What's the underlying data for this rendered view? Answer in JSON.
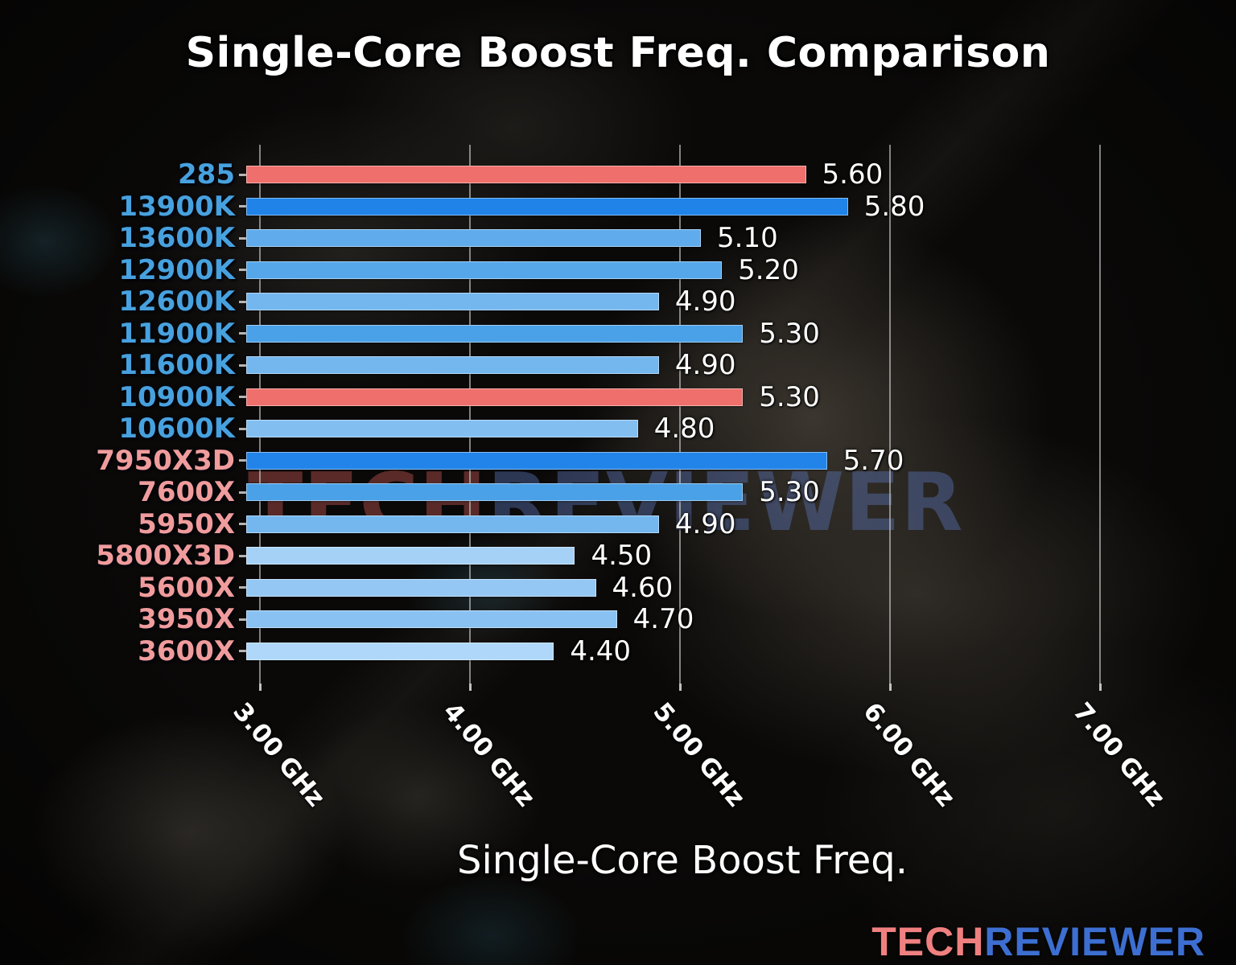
{
  "title": "Single-Core Boost Freq. Comparison",
  "watermark": {
    "part1": "TECH",
    "part2": "REVIEWER"
  },
  "logo": {
    "part1": "TECH",
    "part2": "REVIEWER",
    "color1": "#f08080",
    "color2": "#3d6fd2"
  },
  "colors": {
    "intel_label": "#47a1de",
    "amd_label": "#f09c9c",
    "value_label": "#ffffff",
    "gridline": "rgba(205,205,205,0.62)",
    "highlight_bar": "#ee6f6b"
  },
  "chart_data": {
    "type": "bar",
    "orientation": "horizontal",
    "title": "Single-Core Boost Freq. Comparison",
    "xlabel": "Single-Core Boost Freq.",
    "ylabel": "",
    "grid": true,
    "legend": false,
    "xlim": [
      2.935,
      7.349
    ],
    "unit": "GHz",
    "categories": [
      "285",
      "13900K",
      "13600K",
      "12900K",
      "12600K",
      "11900K",
      "11600K",
      "10900K",
      "10600K",
      "7950X3D",
      "7600X",
      "5950X",
      "5800X3D",
      "5600X",
      "3950X",
      "3600X"
    ],
    "values": [
      5.6,
      5.8,
      5.1,
      5.2,
      4.9,
      5.3,
      4.9,
      5.3,
      4.8,
      5.7,
      5.3,
      4.9,
      4.5,
      4.6,
      4.7,
      4.4
    ],
    "value_labels": [
      "5.60",
      "5.80",
      "5.10",
      "5.20",
      "4.90",
      "5.30",
      "4.90",
      "5.30",
      "4.80",
      "5.70",
      "5.30",
      "4.90",
      "4.50",
      "4.60",
      "4.70",
      "4.40"
    ],
    "bar_colors": [
      "#ee6f6b",
      "#1f83e8",
      "#5fabeb",
      "#55a7e9",
      "#74b7ee",
      "#4aa1e7",
      "#74b7ee",
      "#ee6f6b",
      "#82bef0",
      "#2284e8",
      "#4aa1e7",
      "#74b7ee",
      "#a5d1f7",
      "#94c7f4",
      "#89c2f2",
      "#aed7fa"
    ],
    "category_colors": [
      "#47a1de",
      "#47a1de",
      "#47a1de",
      "#47a1de",
      "#47a1de",
      "#47a1de",
      "#47a1de",
      "#47a1de",
      "#47a1de",
      "#f09c9c",
      "#f09c9c",
      "#f09c9c",
      "#f09c9c",
      "#f09c9c",
      "#f09c9c",
      "#f09c9c"
    ],
    "x_ticks": [
      {
        "value": 3.0,
        "label": "3.00 GHz"
      },
      {
        "value": 4.0,
        "label": "4.00 GHz"
      },
      {
        "value": 5.0,
        "label": "5.00 GHz"
      },
      {
        "value": 6.0,
        "label": "6.00 GHz"
      },
      {
        "value": 7.0,
        "label": "7.00 GHz"
      }
    ]
  }
}
